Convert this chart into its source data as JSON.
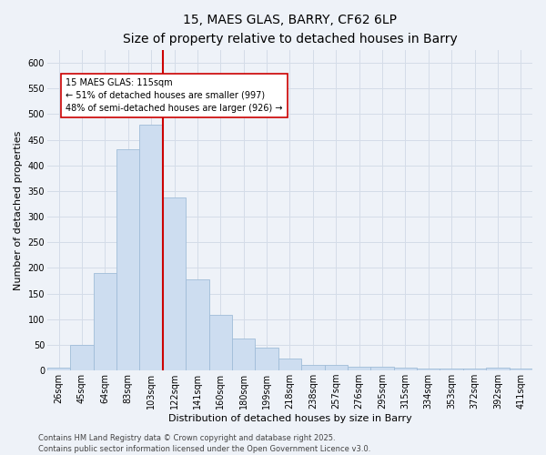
{
  "title_line1": "15, MAES GLAS, BARRY, CF62 6LP",
  "title_line2": "Size of property relative to detached houses in Barry",
  "xlabel": "Distribution of detached houses by size in Barry",
  "ylabel": "Number of detached properties",
  "categories": [
    "26sqm",
    "45sqm",
    "64sqm",
    "83sqm",
    "103sqm",
    "122sqm",
    "141sqm",
    "160sqm",
    "180sqm",
    "199sqm",
    "218sqm",
    "238sqm",
    "257sqm",
    "276sqm",
    "295sqm",
    "315sqm",
    "334sqm",
    "353sqm",
    "372sqm",
    "392sqm",
    "411sqm"
  ],
  "values": [
    5,
    50,
    190,
    432,
    480,
    338,
    178,
    108,
    62,
    44,
    23,
    11,
    11,
    8,
    7,
    5,
    4,
    3,
    3,
    6,
    3
  ],
  "bar_color": "#cdddf0",
  "bar_edge_color": "#a0bcd8",
  "grid_color": "#d4dce8",
  "background_color": "#eef2f8",
  "vline_color": "#cc0000",
  "vline_position": 4.5,
  "annotation_text": "15 MAES GLAS: 115sqm\n← 51% of detached houses are smaller (997)\n48% of semi-detached houses are larger (926) →",
  "annotation_box_facecolor": "#ffffff",
  "annotation_box_edgecolor": "#cc0000",
  "ylim": [
    0,
    625
  ],
  "yticks": [
    0,
    50,
    100,
    150,
    200,
    250,
    300,
    350,
    400,
    450,
    500,
    550,
    600
  ],
  "footer": "Contains HM Land Registry data © Crown copyright and database right 2025.\nContains public sector information licensed under the Open Government Licence v3.0.",
  "title_fontsize": 10,
  "subtitle_fontsize": 9,
  "axis_label_fontsize": 8,
  "tick_fontsize": 7,
  "annotation_fontsize": 7,
  "footer_fontsize": 6
}
